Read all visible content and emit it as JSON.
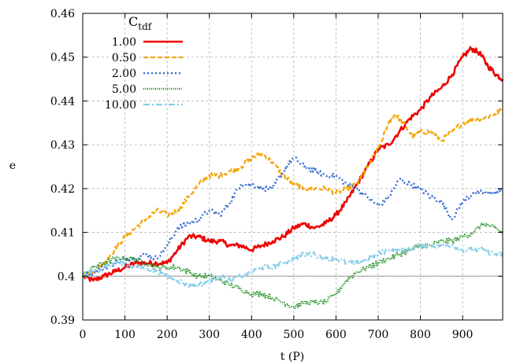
{
  "chart_data": {
    "type": "line",
    "xlabel": "t (P)",
    "ylabel": "e",
    "xlim": [
      0,
      995
    ],
    "ylim": [
      0.39,
      0.46
    ],
    "x_ticks": [
      0,
      100,
      200,
      300,
      400,
      500,
      600,
      700,
      800,
      900
    ],
    "x_tick_labels": [
      "0",
      "100",
      "200",
      "300",
      "400",
      "500",
      "600",
      "700",
      "800",
      "900"
    ],
    "y_ticks": [
      0.39,
      0.4,
      0.41,
      0.42,
      0.43,
      0.44,
      0.45,
      0.46
    ],
    "y_tick_labels": [
      "0.39",
      "0.4",
      "0.41",
      "0.42",
      "0.43",
      "0.44",
      "0.45",
      "0.46"
    ],
    "grid": true,
    "reference_line_y": 0.4,
    "legend": {
      "title_main": "C",
      "title_sub": "tdf",
      "position": "top-left"
    },
    "series": [
      {
        "name": "1.00",
        "color": "#ee0000",
        "dash": "solid",
        "width": 2.6,
        "x": [
          0,
          25,
          50,
          75,
          100,
          125,
          150,
          175,
          200,
          225,
          250,
          275,
          300,
          325,
          350,
          375,
          400,
          425,
          450,
          475,
          500,
          525,
          550,
          575,
          600,
          625,
          650,
          675,
          700,
          725,
          750,
          775,
          800,
          825,
          850,
          875,
          900,
          920,
          940,
          960,
          980,
          995
        ],
        "y": [
          0.4,
          0.399,
          0.4,
          0.401,
          0.402,
          0.403,
          0.403,
          0.403,
          0.403,
          0.406,
          0.409,
          0.409,
          0.408,
          0.408,
          0.407,
          0.407,
          0.406,
          0.407,
          0.408,
          0.409,
          0.411,
          0.412,
          0.411,
          0.412,
          0.414,
          0.417,
          0.421,
          0.425,
          0.429,
          0.43,
          0.433,
          0.436,
          0.438,
          0.441,
          0.443,
          0.446,
          0.45,
          0.452,
          0.451,
          0.448,
          0.446,
          0.445
        ]
      },
      {
        "name": "0.50",
        "color": "#f5a300",
        "dash": "6,3",
        "width": 2.2,
        "x": [
          0,
          25,
          50,
          75,
          100,
          125,
          150,
          175,
          200,
          225,
          250,
          275,
          300,
          325,
          350,
          375,
          400,
          425,
          450,
          475,
          500,
          525,
          550,
          575,
          600,
          625,
          650,
          675,
          700,
          725,
          740,
          760,
          780,
          800,
          825,
          850,
          875,
          900,
          925,
          950,
          975,
          995
        ],
        "y": [
          0.4,
          0.401,
          0.403,
          0.406,
          0.409,
          0.411,
          0.413,
          0.415,
          0.414,
          0.415,
          0.418,
          0.421,
          0.423,
          0.423,
          0.424,
          0.425,
          0.427,
          0.428,
          0.426,
          0.423,
          0.421,
          0.42,
          0.42,
          0.42,
          0.419,
          0.42,
          0.421,
          0.425,
          0.429,
          0.435,
          0.437,
          0.435,
          0.432,
          0.433,
          0.433,
          0.431,
          0.433,
          0.435,
          0.436,
          0.436,
          0.437,
          0.438
        ]
      },
      {
        "name": "2.00",
        "color": "#3a6fd6",
        "dash": "2,3",
        "width": 2.4,
        "x": [
          0,
          25,
          50,
          75,
          100,
          125,
          150,
          175,
          200,
          225,
          250,
          275,
          300,
          325,
          350,
          375,
          400,
          425,
          450,
          475,
          500,
          525,
          550,
          575,
          600,
          625,
          650,
          675,
          700,
          725,
          750,
          775,
          800,
          825,
          850,
          875,
          900,
          925,
          950,
          975,
          995
        ],
        "y": [
          0.4,
          0.401,
          0.402,
          0.403,
          0.404,
          0.404,
          0.405,
          0.404,
          0.407,
          0.411,
          0.412,
          0.413,
          0.415,
          0.414,
          0.417,
          0.421,
          0.421,
          0.42,
          0.42,
          0.424,
          0.427,
          0.425,
          0.424,
          0.423,
          0.423,
          0.421,
          0.42,
          0.418,
          0.416,
          0.418,
          0.422,
          0.421,
          0.42,
          0.418,
          0.417,
          0.413,
          0.417,
          0.419,
          0.419,
          0.419,
          0.42
        ]
      },
      {
        "name": "5.00",
        "color": "#1e8c1e",
        "dash": "1,1.5",
        "width": 2.4,
        "x": [
          0,
          25,
          50,
          75,
          100,
          125,
          150,
          175,
          200,
          225,
          250,
          275,
          300,
          325,
          350,
          375,
          400,
          425,
          450,
          475,
          500,
          525,
          550,
          575,
          600,
          625,
          650,
          675,
          700,
          725,
          750,
          775,
          800,
          825,
          850,
          875,
          900,
          925,
          950,
          975,
          995
        ],
        "y": [
          0.4,
          0.402,
          0.403,
          0.404,
          0.404,
          0.404,
          0.403,
          0.402,
          0.402,
          0.402,
          0.401,
          0.4,
          0.4,
          0.399,
          0.398,
          0.397,
          0.396,
          0.396,
          0.395,
          0.394,
          0.393,
          0.394,
          0.394,
          0.394,
          0.396,
          0.399,
          0.401,
          0.402,
          0.403,
          0.404,
          0.405,
          0.406,
          0.407,
          0.407,
          0.408,
          0.408,
          0.409,
          0.41,
          0.412,
          0.411,
          0.41
        ]
      },
      {
        "name": "10.00",
        "color": "#87ceeb",
        "dash": "8,3,2,3",
        "width": 2.2,
        "x": [
          0,
          25,
          50,
          75,
          100,
          125,
          150,
          175,
          200,
          225,
          250,
          275,
          300,
          325,
          350,
          375,
          400,
          425,
          450,
          475,
          500,
          525,
          550,
          575,
          600,
          625,
          650,
          675,
          700,
          725,
          750,
          775,
          800,
          825,
          850,
          875,
          900,
          925,
          950,
          975,
          995
        ],
        "y": [
          0.4,
          0.401,
          0.402,
          0.403,
          0.403,
          0.402,
          0.402,
          0.401,
          0.4,
          0.399,
          0.398,
          0.398,
          0.399,
          0.4,
          0.399,
          0.4,
          0.401,
          0.402,
          0.402,
          0.403,
          0.404,
          0.405,
          0.405,
          0.404,
          0.404,
          0.403,
          0.403,
          0.404,
          0.405,
          0.406,
          0.406,
          0.406,
          0.407,
          0.407,
          0.407,
          0.407,
          0.406,
          0.406,
          0.406,
          0.405,
          0.405
        ]
      }
    ]
  }
}
